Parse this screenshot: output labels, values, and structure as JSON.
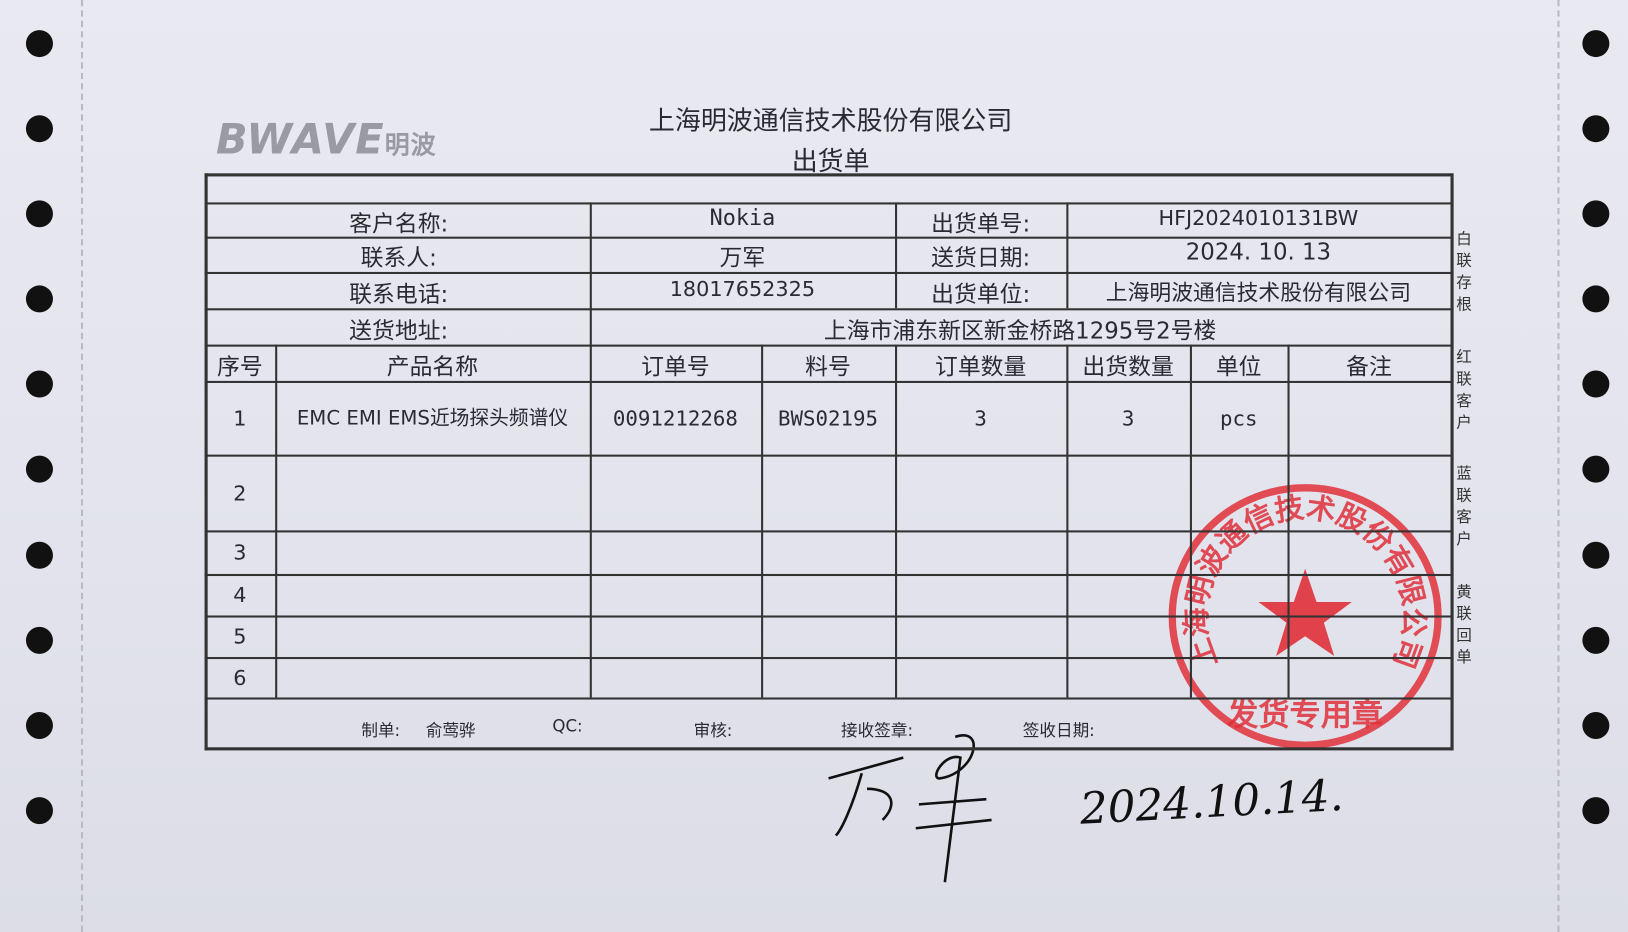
{
  "logo": "BWAVE明波",
  "company": "上海明波通信技术股份有限公司",
  "doc_title": "出货单",
  "info": {
    "customer_label": "客户名称:",
    "customer": "Nokia",
    "order_no_label": "出货单号:",
    "order_no": "HFJ2024010131BW",
    "contact_label": "联系人:",
    "contact": "万军",
    "date_label": "送货日期:",
    "date": "2024. 10. 13",
    "phone_label": "联系电话:",
    "phone": "18017652325",
    "shipper_label": "出货单位:",
    "shipper": "上海明波通信技术股份有限公司",
    "address_label": "送货地址:",
    "address": "上海市浦东新区新金桥路1295号2号楼"
  },
  "columns": [
    "序号",
    "产品名称",
    "订单号",
    "料号",
    "订单数量",
    "出货数量",
    "单位",
    "备注"
  ],
  "rows": [
    {
      "no": "1",
      "name": "EMC EMI EMS近场探头频谱仪",
      "order": "0091212268",
      "part": "BWS02195",
      "order_qty": "3",
      "ship_qty": "3",
      "unit": "pcs",
      "remark": ""
    },
    {
      "no": "2"
    },
    {
      "no": "3"
    },
    {
      "no": "4"
    },
    {
      "no": "5"
    },
    {
      "no": "6"
    }
  ],
  "footer": {
    "maker_label": "制单:",
    "maker": "俞莺骅",
    "qc_label": "QC:",
    "review_label": "审核:",
    "receiver_label": "接收签章:",
    "receive_date_label": "签收日期:"
  },
  "side_labels": [
    "白联存根",
    "红联客户",
    "蓝联客户",
    "黄联回单"
  ],
  "stamp": {
    "text": "上海明波通信技术股份有限公司",
    "bottom": "发货专用章",
    "color": "#e0303a"
  },
  "handwriting": {
    "signature": "万军",
    "date": "2024.10.14."
  }
}
